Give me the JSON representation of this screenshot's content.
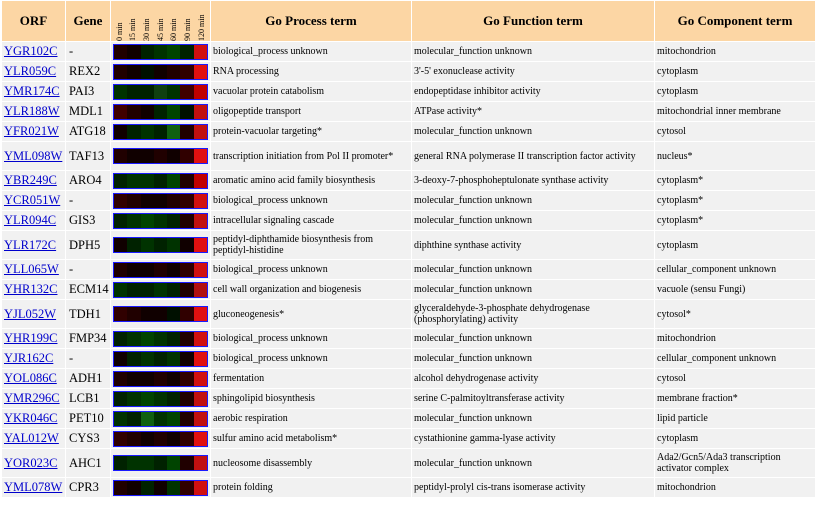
{
  "headers": {
    "orf": "ORF",
    "gene": "Gene",
    "timepoints": [
      "0 min",
      "15 min",
      "30 min",
      "45 min",
      "60 min",
      "90 min",
      "120 min"
    ],
    "process": "Go Process term",
    "function": "Go Function term",
    "component": "Go Component term"
  },
  "rows": [
    {
      "orf": "YGR102C",
      "gene": "-",
      "process": "biological_process unknown",
      "function": "molecular_function unknown",
      "component": "mitochondrion",
      "heat": [
        "#200000",
        "#100000",
        "#002200",
        "#003300",
        "#004400",
        "#002200",
        "#d01010"
      ]
    },
    {
      "orf": "YLR059C",
      "gene": "REX2",
      "process": "RNA processing",
      "function": "3'-5' exonuclease activity",
      "component": "cytoplasm",
      "heat": [
        "#200000",
        "#100000",
        "#001000",
        "#100000",
        "#200000",
        "#300000",
        "#e01010"
      ]
    },
    {
      "orf": "YMR174C",
      "gene": "PAI3",
      "process": "vacuolar protein catabolism",
      "function": "endopeptidase inhibitor activity",
      "component": "cytoplasm",
      "heat": [
        "#003300",
        "#002200",
        "#002200",
        "#104010",
        "#003300",
        "#400000",
        "#c00000"
      ]
    },
    {
      "orf": "YLR188W",
      "gene": "MDL1",
      "process": "oligopeptide transport",
      "function": "ATPase activity*",
      "component": "mitochondrial inner membrane",
      "heat": [
        "#400000",
        "#200000",
        "#100000",
        "#002200",
        "#004400",
        "#001000",
        "#c01010"
      ]
    },
    {
      "orf": "YFR021W",
      "gene": "ATG18",
      "process": "protein-vacuolar targeting*",
      "function": "molecular_function unknown",
      "component": "cytosol",
      "heat": [
        "#100000",
        "#002200",
        "#003300",
        "#002200",
        "#106010",
        "#200000",
        "#c01010"
      ]
    },
    {
      "orf": "YML098W",
      "gene": "TAF13",
      "process": "transcription initiation from Pol II promoter*",
      "function": "general RNA polymerase II transcription factor activity",
      "component": "nucleus*",
      "heat": [
        "#200000",
        "#100000",
        "#100000",
        "#200000",
        "#100000",
        "#300000",
        "#e01010"
      ]
    },
    {
      "orf": "YBR249C",
      "gene": "ARO4",
      "process": "aromatic amino acid family biosynthesis",
      "function": "3-deoxy-7-phosphoheptulonate synthase activity",
      "component": "cytoplasm*",
      "heat": [
        "#002200",
        "#003300",
        "#003300",
        "#002200",
        "#004400",
        "#200000",
        "#c00000"
      ]
    },
    {
      "orf": "YCR051W",
      "gene": "-",
      "process": "biological_process unknown",
      "function": "molecular_function unknown",
      "component": "cytoplasm*",
      "heat": [
        "#300000",
        "#200000",
        "#100000",
        "#100000",
        "#200000",
        "#300000",
        "#d01010"
      ]
    },
    {
      "orf": "YLR094C",
      "gene": "GIS3",
      "process": "intracellular signaling cascade",
      "function": "molecular_function unknown",
      "component": "cytoplasm*",
      "heat": [
        "#002200",
        "#003300",
        "#004400",
        "#003300",
        "#002200",
        "#200000",
        "#c01010"
      ]
    },
    {
      "orf": "YLR172C",
      "gene": "DPH5",
      "process": "peptidyl-diphthamide biosynthesis from peptidyl-histidine",
      "function": "diphthine synthase activity",
      "component": "cytoplasm",
      "heat": [
        "#100000",
        "#002200",
        "#003300",
        "#002200",
        "#003300",
        "#100000",
        "#e01010"
      ]
    },
    {
      "orf": "YLL065W",
      "gene": "-",
      "process": "biological_process unknown",
      "function": "molecular_function unknown",
      "component": "cellular_component unknown",
      "heat": [
        "#200000",
        "#100000",
        "#100000",
        "#200000",
        "#100000",
        "#300000",
        "#d01010"
      ]
    },
    {
      "orf": "YHR132C",
      "gene": "ECM14",
      "process": "cell wall organization and biogenesis",
      "function": "molecular_function unknown",
      "component": "vacuole (sensu Fungi)",
      "heat": [
        "#003300",
        "#002200",
        "#002200",
        "#003300",
        "#002200",
        "#200000",
        "#b01010"
      ]
    },
    {
      "orf": "YJL052W",
      "gene": "TDH1",
      "process": "gluconeogenesis*",
      "function": "glyceraldehyde-3-phosphate dehydrogenase (phosphorylating) activity",
      "component": "cytosol*",
      "heat": [
        "#300000",
        "#200000",
        "#100000",
        "#100000",
        "#001000",
        "#300000",
        "#e01010"
      ]
    },
    {
      "orf": "YHR199C",
      "gene": "FMP34",
      "process": "biological_process unknown",
      "function": "molecular_function unknown",
      "component": "mitochondrion",
      "heat": [
        "#002200",
        "#003300",
        "#004400",
        "#003300",
        "#002200",
        "#200000",
        "#d01010"
      ]
    },
    {
      "orf": "YJR162C",
      "gene": "-",
      "process": "biological_process unknown",
      "function": "molecular_function unknown",
      "component": "cellular_component unknown",
      "heat": [
        "#100000",
        "#002200",
        "#003300",
        "#002200",
        "#003300",
        "#100000",
        "#e01010"
      ]
    },
    {
      "orf": "YOL086C",
      "gene": "ADH1",
      "process": "fermentation",
      "function": "alcohol dehydrogenase activity",
      "component": "cytosol",
      "heat": [
        "#200000",
        "#100000",
        "#100000",
        "#200000",
        "#100000",
        "#300000",
        "#d01010"
      ]
    },
    {
      "orf": "YMR296C",
      "gene": "LCB1",
      "process": "sphingolipid biosynthesis",
      "function": "serine C-palmitoyltransferase activity",
      "component": "membrane fraction*",
      "heat": [
        "#002200",
        "#003300",
        "#004400",
        "#003300",
        "#002200",
        "#200000",
        "#c01010"
      ]
    },
    {
      "orf": "YKR046C",
      "gene": "PET10",
      "process": "aerobic respiration",
      "function": "molecular_function unknown",
      "component": "lipid particle",
      "heat": [
        "#003300",
        "#002200",
        "#106010",
        "#003300",
        "#004400",
        "#200000",
        "#c01010"
      ]
    },
    {
      "orf": "YAL012W",
      "gene": "CYS3",
      "process": "sulfur amino acid metabolism*",
      "function": "cystathionine gamma-lyase activity",
      "component": "cytoplasm",
      "heat": [
        "#300000",
        "#200000",
        "#100000",
        "#200000",
        "#100000",
        "#300000",
        "#e01010"
      ]
    },
    {
      "orf": "YOR023C",
      "gene": "AHC1",
      "process": "nucleosome disassembly",
      "function": "molecular_function unknown",
      "component": "Ada2/Gcn5/Ada3 transcription activator complex",
      "heat": [
        "#002200",
        "#003300",
        "#003300",
        "#002200",
        "#004400",
        "#200000",
        "#c01010"
      ]
    },
    {
      "orf": "YML078W",
      "gene": "CPR3",
      "process": "protein folding",
      "function": "peptidyl-prolyl cis-trans isomerase activity",
      "component": "mitochondrion",
      "heat": [
        "#200000",
        "#100000",
        "#002200",
        "#100000",
        "#003300",
        "#300000",
        "#d01010"
      ]
    }
  ]
}
